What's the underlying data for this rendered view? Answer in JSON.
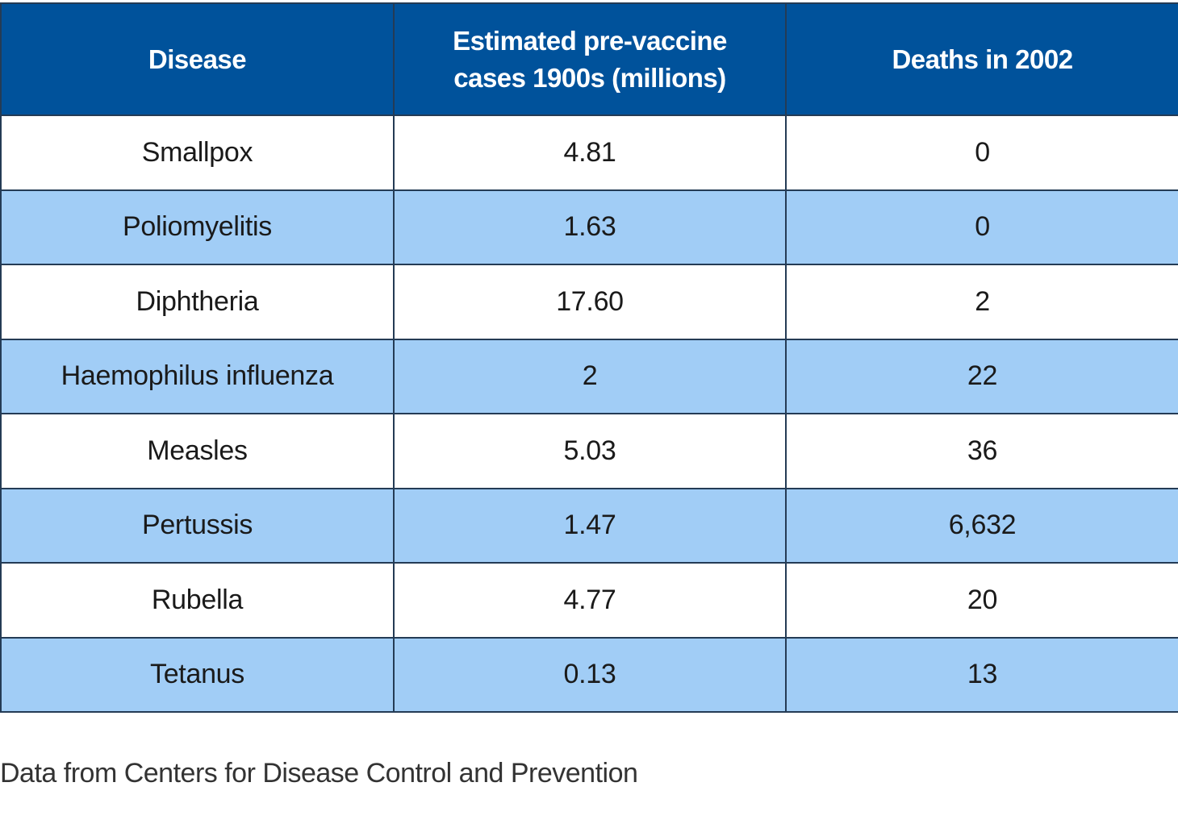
{
  "table": {
    "header": [
      "Disease",
      "Estimated pre-vaccine cases 1900s (millions)",
      "Deaths in 2002"
    ],
    "rows": [
      [
        "Smallpox",
        "4.81",
        "0"
      ],
      [
        "Poliomyelitis",
        "1.63",
        "0"
      ],
      [
        "Diphtheria",
        "17.60",
        "2"
      ],
      [
        "Haemophilus influenza",
        "2",
        "22"
      ],
      [
        "Measles",
        "5.03",
        "36"
      ],
      [
        "Pertussis",
        "1.47",
        "6,632"
      ],
      [
        "Rubella",
        "4.77",
        "20"
      ],
      [
        "Tetanus",
        "0.13",
        "13"
      ]
    ]
  },
  "footnote": "Data from Centers for Disease Control and Prevention"
}
